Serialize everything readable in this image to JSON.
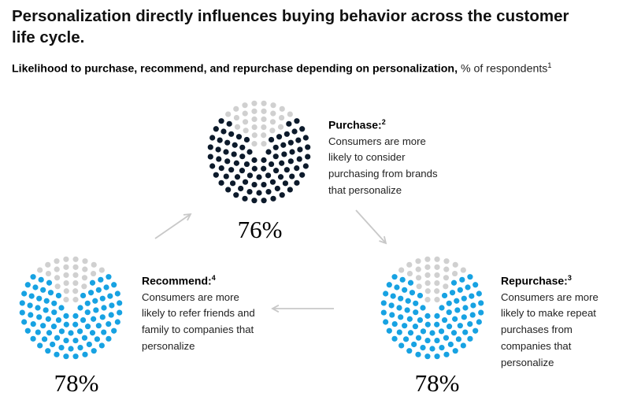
{
  "title": "Personalization directly influences buying behavior across the customer life cycle.",
  "subtitle": {
    "bold": "Likelihood to purchase, recommend, and repurchase depending on personalization,",
    "unit": " % of respondents",
    "note": "1"
  },
  "colors": {
    "filled_dark": "#0c1a2b",
    "filled_blue": "#17a2e2",
    "unfilled": "#d0d0d0",
    "arrow": "#c8c8c8"
  },
  "chart_data": [
    {
      "type": "pie",
      "title": "Purchase:",
      "note": "2",
      "value": 76,
      "value_label": "76%",
      "description": "Consumers are more likely to consider purchasing from brands that personalize",
      "color": "#0c1a2b"
    },
    {
      "type": "pie",
      "title": "Repurchase:",
      "note": "3",
      "value": 78,
      "value_label": "78%",
      "description": "Consumers are more likely to make repeat purchases from companies that personalize",
      "color": "#17a2e2"
    },
    {
      "type": "pie",
      "title": "Recommend:",
      "note": "4",
      "value": 78,
      "value_label": "78%",
      "description": "Consumers are more likely to refer friends and family to companies that personalize",
      "color": "#17a2e2"
    }
  ]
}
